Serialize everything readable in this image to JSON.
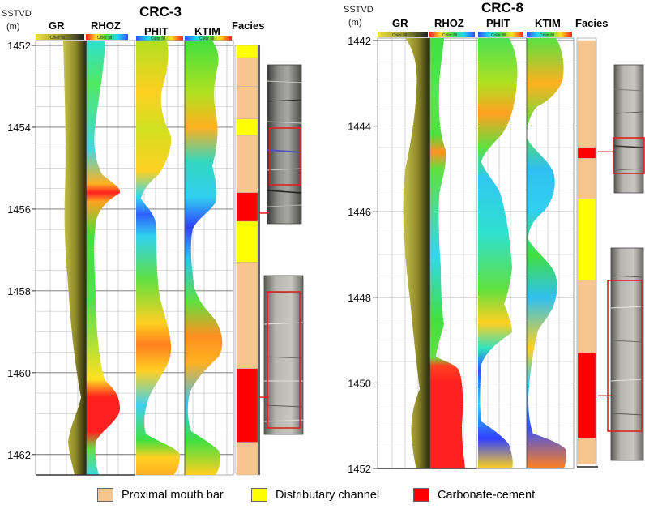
{
  "colors": {
    "proximal": "#f9c58e",
    "distributary": "#ffff00",
    "carbonate": "#ff0000",
    "marker": "#e02020"
  },
  "axis_title": "SSTVD",
  "axis_unit": "(m)",
  "colorbar_label": "Color fill",
  "panels": [
    {
      "well": "CRC-3",
      "depth_top": 1452,
      "depth_bottom": 1462.5,
      "depth_ticks": [
        1452,
        1454,
        1456,
        1458,
        1460,
        1462
      ],
      "track_headers": [
        "GR",
        "RHOZ",
        "PHIT",
        "KTIM",
        "Facies"
      ],
      "facies": [
        {
          "top": 1452,
          "base": 1452.3,
          "type": "distributary"
        },
        {
          "top": 1452.3,
          "base": 1453.0,
          "type": "proximal"
        },
        {
          "top": 1453.0,
          "base": 1453.8,
          "type": "proximal"
        },
        {
          "top": 1453.8,
          "base": 1454.2,
          "type": "distributary"
        },
        {
          "top": 1454.2,
          "base": 1455.6,
          "type": "proximal"
        },
        {
          "top": 1455.6,
          "base": 1456.3,
          "type": "carbonate"
        },
        {
          "top": 1456.3,
          "base": 1457.3,
          "type": "distributary"
        },
        {
          "top": 1457.3,
          "base": 1459.9,
          "type": "proximal"
        },
        {
          "top": 1459.9,
          "base": 1461.7,
          "type": "carbonate"
        },
        {
          "top": 1461.7,
          "base": 1462.5,
          "type": "proximal"
        }
      ],
      "core_markers": [
        {
          "depth": 1456.1
        },
        {
          "depth": 1460.6
        }
      ]
    },
    {
      "well": "CRC-8",
      "depth_top": 1442,
      "depth_bottom": 1452,
      "depth_ticks": [
        1442,
        1444,
        1446,
        1448,
        1450,
        1452
      ],
      "track_headers": [
        "GR",
        "RHOZ",
        "PHIT",
        "KTIM",
        "Facies"
      ],
      "facies": [
        {
          "top": 1442,
          "base": 1444.5,
          "type": "proximal"
        },
        {
          "top": 1444.5,
          "base": 1444.75,
          "type": "carbonate"
        },
        {
          "top": 1444.75,
          "base": 1445.7,
          "type": "proximal"
        },
        {
          "top": 1445.7,
          "base": 1447.6,
          "type": "distributary"
        },
        {
          "top": 1447.6,
          "base": 1449.3,
          "type": "proximal"
        },
        {
          "top": 1449.3,
          "base": 1451.3,
          "type": "carbonate"
        },
        {
          "top": 1451.3,
          "base": 1451.9,
          "type": "proximal"
        }
      ],
      "core_markers": [
        {
          "depth": 1444.6
        },
        {
          "depth": 1450.3
        }
      ]
    }
  ],
  "legend": [
    {
      "label": "Proximal mouth bar",
      "type": "proximal"
    },
    {
      "label": "Distributary channel",
      "type": "distributary"
    },
    {
      "label": "Carbonate-cement",
      "type": "carbonate"
    }
  ]
}
